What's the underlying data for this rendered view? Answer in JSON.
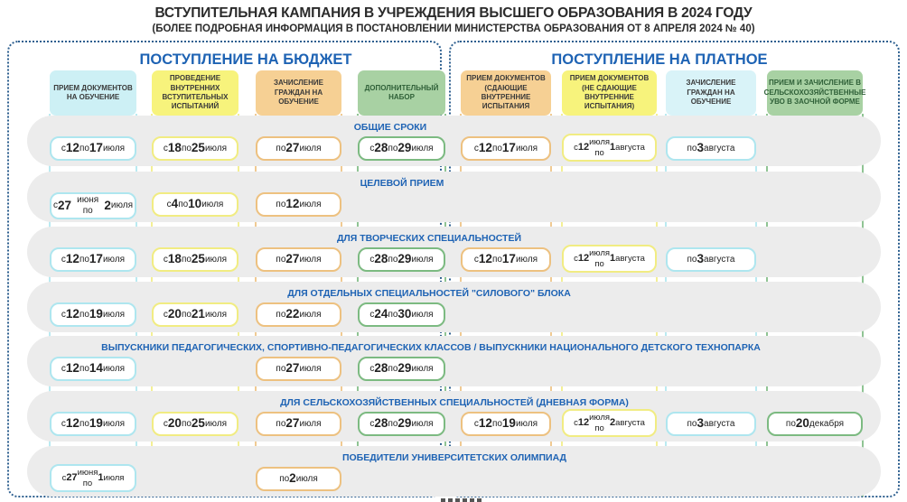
{
  "page": {
    "title": "ВСТУПИТЕЛЬНАЯ КАМПАНИЯ В УЧРЕЖДЕНИЯ ВЫСШЕГО ОБРАЗОВАНИЯ В 2024 ГОДУ",
    "subtitle": "(БОЛЕЕ ПОДРОБНАЯ ИНФОРМАЦИЯ В ПОСТАНОВЛЕНИИ МИНИСТЕРСТВА ОБРАЗОВАНИЯ ОТ 8 АПРЕЛЯ 2024 № 40)"
  },
  "sections": [
    {
      "title": "ПОСТУПЛЕНИЕ НА БЮДЖЕТ"
    },
    {
      "title": "ПОСТУПЛЕНИЕ НА ПЛАТНОЕ"
    }
  ],
  "columns": [
    {
      "section": 0,
      "label": "ПРИЕМ ДОКУМЕНТОВ НА ОБУЧЕНИЕ",
      "color": "cyan"
    },
    {
      "section": 0,
      "label": "ПРОВЕДЕНИЕ ВНУТРЕННИХ ВСТУПИТЕЛЬНЫХ ИСПЫТАНИЙ",
      "color": "yellow"
    },
    {
      "section": 0,
      "label": "ЗАЧИСЛЕНИЕ ГРАЖДАН НА ОБУЧЕНИЕ",
      "color": "orange"
    },
    {
      "section": 0,
      "label": "ДОПОЛНИТЕЛЬНЫЙ НАБОР",
      "color": "green"
    },
    {
      "section": 1,
      "label": "ПРИЕМ ДОКУМЕНТОВ (СДАЮЩИЕ ВНУТРЕННИЕ ИСПЫТАНИЯ",
      "color": "orange"
    },
    {
      "section": 1,
      "label": "ПРИЕМ ДОКУМЕНТОВ (НЕ СДАЮЩИЕ ВНУТРЕННИЕ ИСПЫТАНИЯ)",
      "color": "yellow"
    },
    {
      "section": 1,
      "label": "ЗАЧИСЛЕНИЕ ГРАЖДАН НА ОБУЧЕНИЕ",
      "color": "cyan_light"
    },
    {
      "section": 1,
      "label": "ПРИЕМ И ЗАЧИСЛЕНИЕ В СЕЛЬСКОХОЗЯЙСТВЕННЫЕ УВО В ЗАОЧНОЙ ФОРМЕ",
      "color": "green"
    }
  ],
  "rows": [
    {
      "title": "ОБЩИЕ СРОКИ",
      "cells": [
        {
          "col": 0,
          "text": "с 12 по 17 июля"
        },
        {
          "col": 1,
          "text": "с 18 по 25 июля"
        },
        {
          "col": 2,
          "text": "по 27 июля"
        },
        {
          "col": 3,
          "text": "с 28 по 29 июля"
        },
        {
          "col": 4,
          "text": "с 12 по 17 июля"
        },
        {
          "col": 5,
          "text": "с 12 июля\nпо 1 августа"
        },
        {
          "col": 6,
          "text": "по 3 августа"
        }
      ]
    },
    {
      "title": "ЦЕЛЕВОЙ ПРИЕМ",
      "cells": [
        {
          "col": 0,
          "text": "с 27 июня по 2 июля"
        },
        {
          "col": 1,
          "text": "с 4 по 10 июля"
        },
        {
          "col": 2,
          "text": "по 12 июля"
        }
      ]
    },
    {
      "title": "ДЛЯ ТВОРЧЕСКИХ СПЕЦИАЛЬНОСТЕЙ",
      "cells": [
        {
          "col": 0,
          "text": "с 12 по 17 июля"
        },
        {
          "col": 1,
          "text": "с 18 по 25 июля"
        },
        {
          "col": 2,
          "text": "по 27 июля"
        },
        {
          "col": 3,
          "text": "с 28 по 29 июля"
        },
        {
          "col": 4,
          "text": "с 12 по 17 июля"
        },
        {
          "col": 5,
          "text": "с 12 июля\nпо 1 августа"
        },
        {
          "col": 6,
          "text": "по 3 августа"
        }
      ]
    },
    {
      "title": "ДЛЯ ОТДЕЛЬНЫХ СПЕЦИАЛЬНОСТЕЙ \"СИЛОВОГО\" БЛОКА",
      "cells": [
        {
          "col": 0,
          "text": "с 12 по 19 июля"
        },
        {
          "col": 1,
          "text": "с 20 по 21 июля"
        },
        {
          "col": 2,
          "text": "по 22 июля"
        },
        {
          "col": 3,
          "text": "с 24 по 30 июля"
        }
      ]
    },
    {
      "title": "ВЫПУСКНИКИ ПЕДАГОГИЧЕСКИХ, СПОРТИВНО-ПЕДАГОГИЧЕСКИХ КЛАССОВ / ВЫПУСКНИКИ НАЦИОНАЛЬНОГО ДЕТСКОГО ТЕХНОПАРКА",
      "cells": [
        {
          "col": 0,
          "text": "с 12 по 14 июля"
        },
        {
          "col": 2,
          "text": "по 27 июля"
        },
        {
          "col": 3,
          "text": "с 28 по 29 июля"
        }
      ]
    },
    {
      "title": "ДЛЯ СЕЛЬСКОХОЗЯЙСТВЕННЫХ СПЕЦИАЛЬНОСТЕЙ (ДНЕВНАЯ ФОРМА)",
      "cells": [
        {
          "col": 0,
          "text": "с 12 по 19 июля"
        },
        {
          "col": 1,
          "text": "с 20 по 25 июля"
        },
        {
          "col": 2,
          "text": "по 27 июля"
        },
        {
          "col": 3,
          "text": "с 28 по 29 июля"
        },
        {
          "col": 4,
          "text": "с 12 по 19 июля"
        },
        {
          "col": 5,
          "text": "с 12 июля\nпо 2 августа"
        },
        {
          "col": 6,
          "text": "по 3 августа"
        },
        {
          "col": 7,
          "text": "по 20 декабря"
        }
      ]
    },
    {
      "title": "ПОБЕДИТЕЛИ УНИВЕРСИТЕТСКИХ ОЛИМПИАД",
      "cells": [
        {
          "col": 0,
          "text": "с 27 июня\nпо 1 июля"
        },
        {
          "col": 2,
          "text": "по 2 июля"
        }
      ]
    }
  ],
  "colors": {
    "cyan": {
      "bg": "#cdf0f5",
      "border": "#aee6ef"
    },
    "cyan_light": {
      "bg": "#d9f3f8",
      "border": "#aee6ef"
    },
    "yellow": {
      "bg": "#f7f37c",
      "border": "#f1ec82"
    },
    "orange": {
      "bg": "#f6d094",
      "border": "#edc180"
    },
    "green": {
      "bg": "#a8d1a3",
      "border": "#7cba81"
    },
    "accent_blue": "#1e63b4",
    "band_gray": "#ececec",
    "dashed_border": "#2d5f8f"
  }
}
